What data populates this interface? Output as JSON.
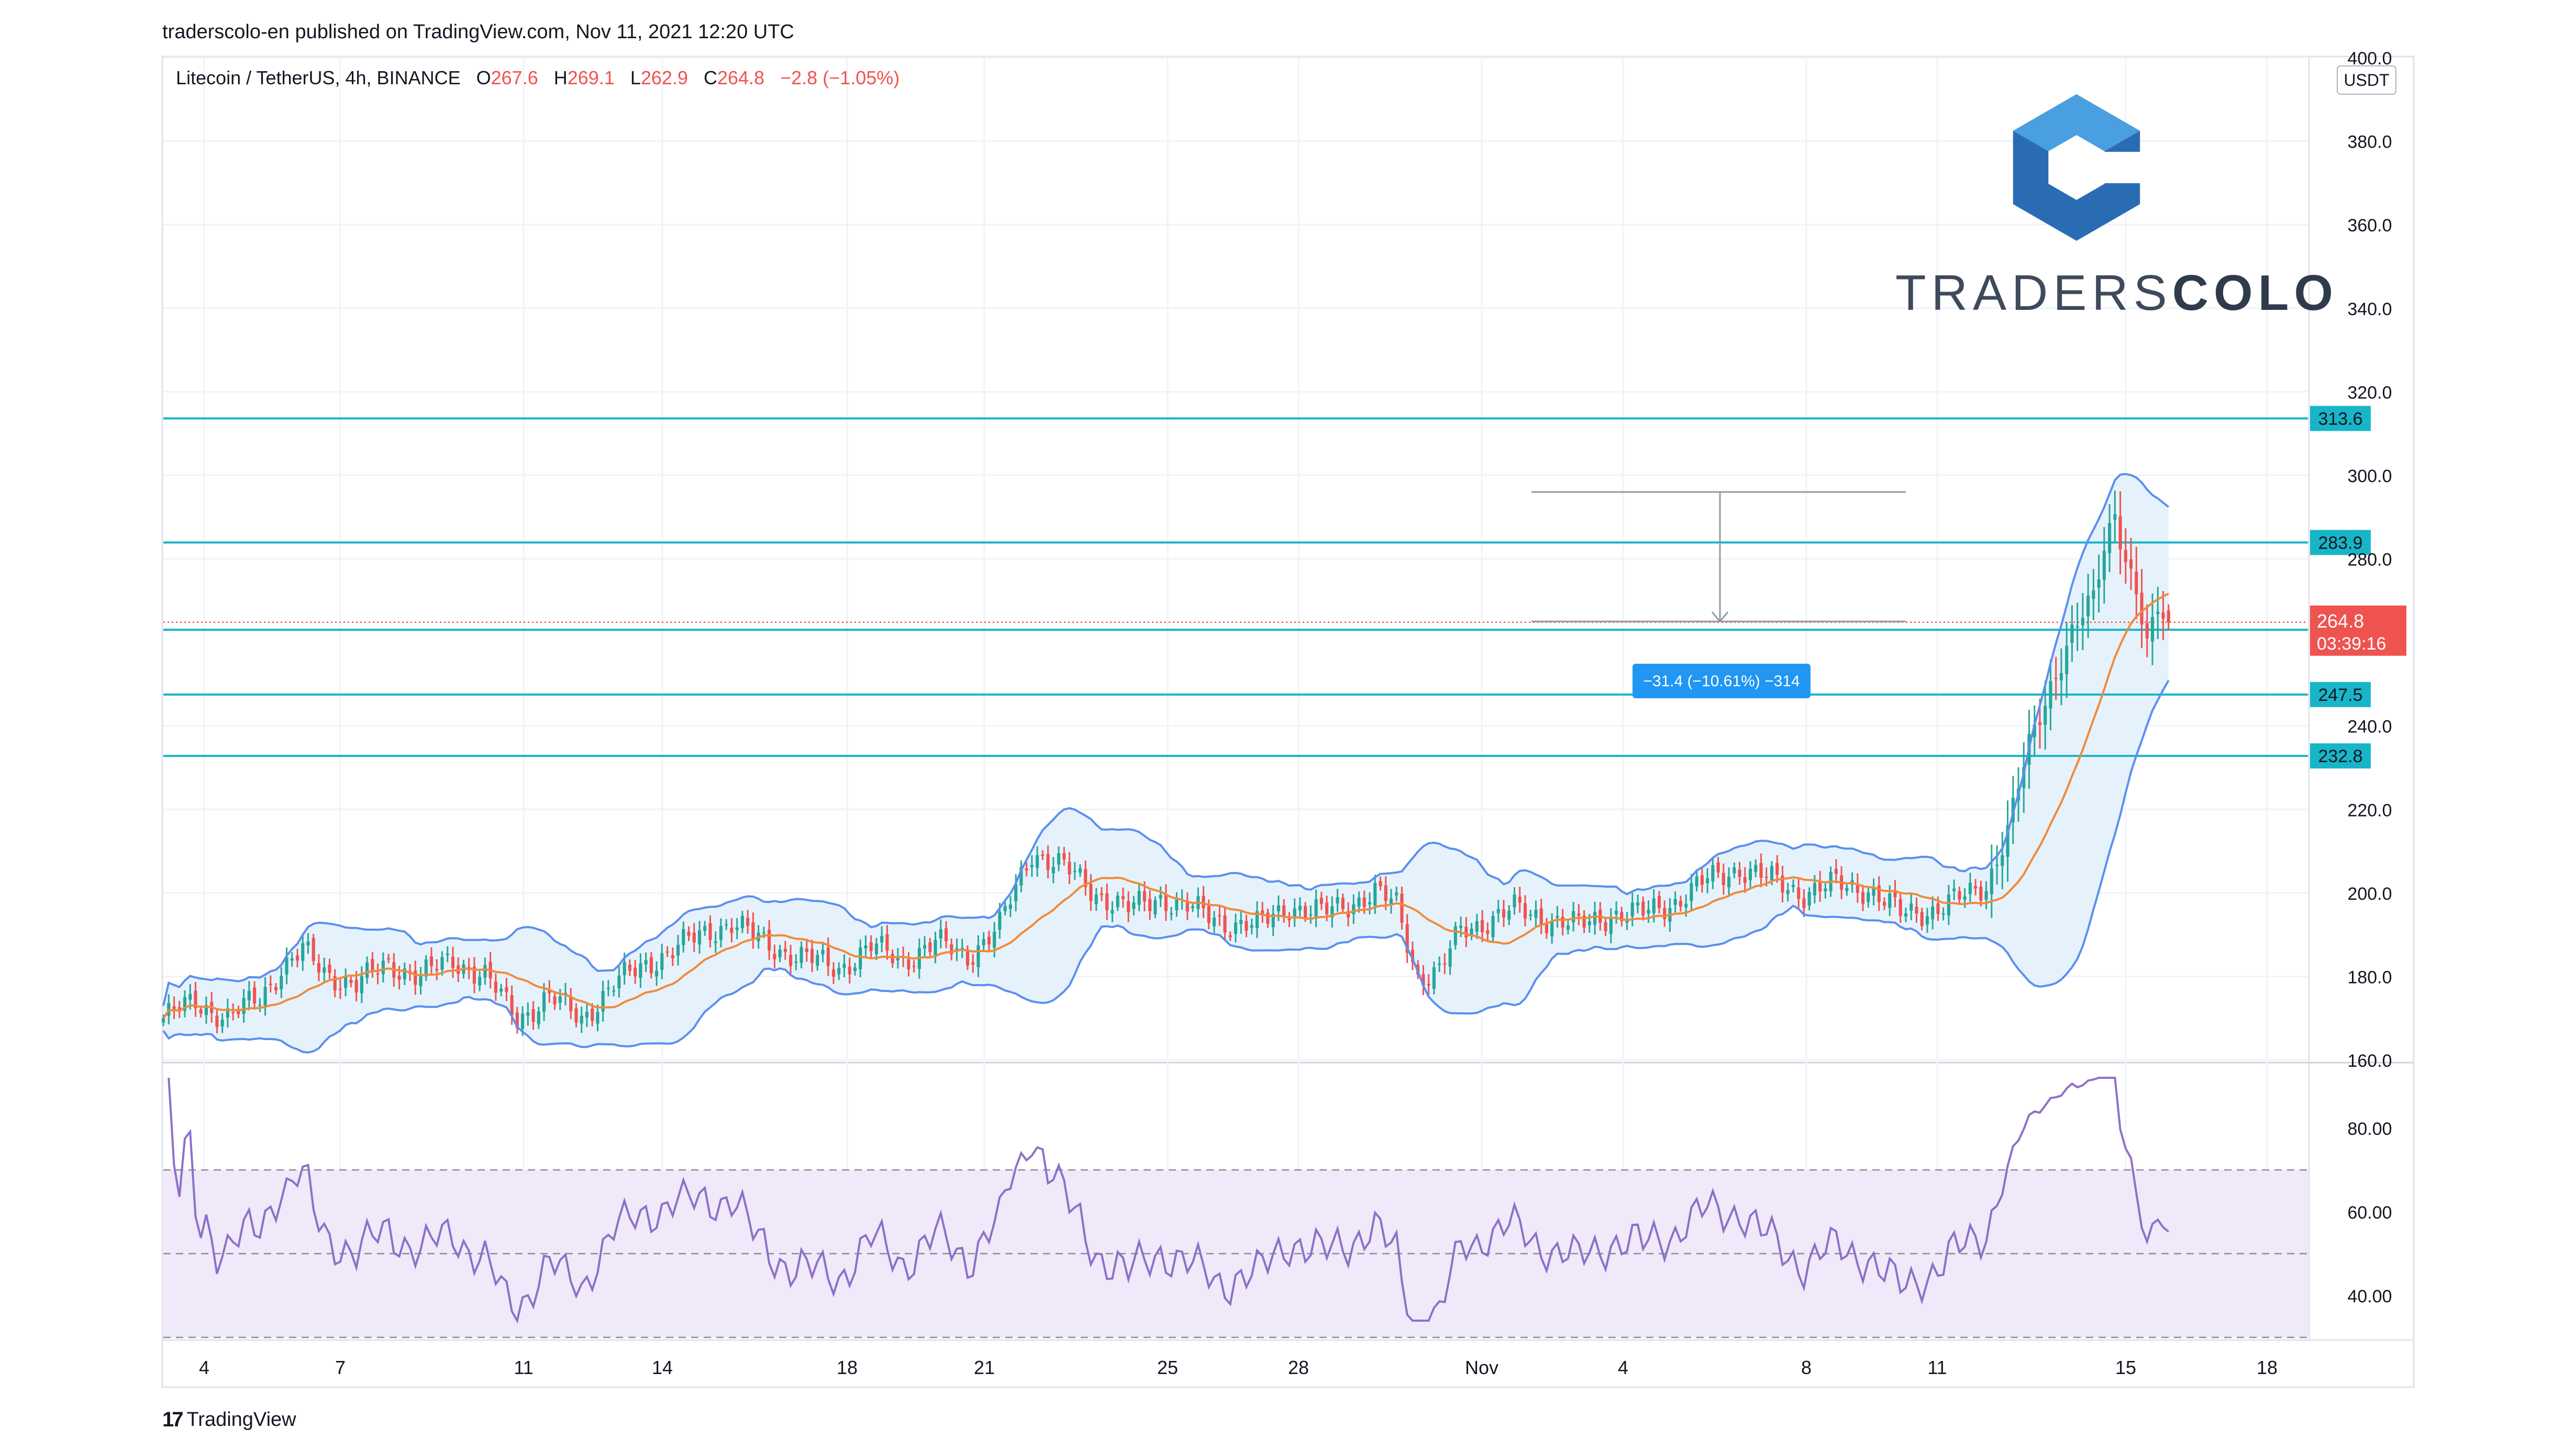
{
  "publisher": "traderscolo-en published on TradingView.com, Nov 11, 2021 12:20 UTC",
  "legend": {
    "symbol": "Litecoin / TetherUS, 4h, BINANCE",
    "o_label": "O",
    "o": "267.6",
    "h_label": "H",
    "h": "269.1",
    "l_label": "L",
    "l": "262.9",
    "c_label": "C",
    "c": "264.8",
    "change": "−2.8 (−1.05%)"
  },
  "currency": "USDT",
  "brand": {
    "left": "TRADERS",
    "right": "COLO"
  },
  "footer": "TradingView",
  "colors": {
    "bull": "#26a69a",
    "bear": "#ef5350",
    "bb": "#5b8ff0",
    "bb_fill": "#e6f2fb",
    "basis": "#f08a3a",
    "level": "#18b5c8",
    "rsi": "#8e6fc8",
    "rsi_band": "#efe9f9",
    "measure": "#2196f3",
    "logo_dark": "#2a6cb3",
    "logo_light": "#4a9fe0"
  },
  "chart_data": {
    "type": "candlestick",
    "symbol": "Litecoin / TetherUS",
    "interval": "4h",
    "exchange": "BINANCE",
    "ylim": [
      160,
      400
    ],
    "y_ticks": [
      "400.0",
      "380.0",
      "360.0",
      "340.0",
      "320.0",
      "300.0",
      "280.0",
      "240.0",
      "220.0",
      "200.0",
      "180.0",
      "160.0"
    ],
    "x_ticks": [
      "4",
      "7",
      "11",
      "14",
      "18",
      "21",
      "25",
      "28",
      "Nov",
      "4",
      "8",
      "11",
      "15",
      "18"
    ],
    "close_anchors": [
      [
        0,
        170
      ],
      [
        6,
        174
      ],
      [
        12,
        170
      ],
      [
        18,
        175
      ],
      [
        22,
        182
      ],
      [
        26,
        186
      ],
      [
        30,
        181
      ],
      [
        36,
        178
      ],
      [
        42,
        183
      ],
      [
        48,
        180
      ],
      [
        54,
        184
      ],
      [
        60,
        180
      ],
      [
        66,
        170
      ],
      [
        72,
        175
      ],
      [
        78,
        170
      ],
      [
        84,
        178
      ],
      [
        90,
        183
      ],
      [
        96,
        187
      ],
      [
        102,
        191
      ],
      [
        106,
        193
      ],
      [
        112,
        188
      ],
      [
        118,
        185
      ],
      [
        126,
        182
      ],
      [
        132,
        187
      ],
      [
        138,
        184
      ],
      [
        144,
        188
      ],
      [
        150,
        185
      ],
      [
        156,
        192
      ],
      [
        162,
        210
      ],
      [
        168,
        206
      ],
      [
        174,
        200
      ],
      [
        180,
        196
      ],
      [
        186,
        199
      ],
      [
        192,
        196
      ],
      [
        198,
        193
      ],
      [
        204,
        192
      ],
      [
        210,
        197
      ],
      [
        216,
        195
      ],
      [
        222,
        198
      ],
      [
        226,
        200
      ],
      [
        230,
        197
      ],
      [
        234,
        180
      ],
      [
        238,
        181
      ],
      [
        242,
        191
      ],
      [
        246,
        193
      ],
      [
        252,
        196
      ],
      [
        258,
        194
      ],
      [
        264,
        192
      ],
      [
        270,
        195
      ],
      [
        276,
        195
      ],
      [
        282,
        198
      ],
      [
        288,
        203
      ],
      [
        294,
        206
      ],
      [
        300,
        203
      ],
      [
        306,
        200
      ],
      [
        312,
        202
      ],
      [
        318,
        201
      ],
      [
        324,
        195
      ],
      [
        330,
        196
      ],
      [
        336,
        199
      ],
      [
        340,
        202
      ],
      [
        344,
        215
      ],
      [
        348,
        235
      ],
      [
        352,
        250
      ],
      [
        356,
        262
      ],
      [
        360,
        270
      ],
      [
        362,
        283
      ],
      [
        364,
        292
      ],
      [
        366,
        280
      ],
      [
        368,
        272
      ],
      [
        370,
        258
      ],
      [
        372,
        268
      ],
      [
        374,
        264.8
      ]
    ],
    "total_bars": 375,
    "x_domain": [
      0,
      400
    ],
    "bollinger": {
      "basis": "20",
      "bands": "2"
    },
    "last_price": "264.8",
    "countdown": "03:39:16",
    "levels": [
      313.6,
      283.9,
      263.0,
      247.5,
      232.8
    ],
    "level_labels": [
      "313.6",
      "283.9",
      "263.0",
      "247.5",
      "232.8"
    ],
    "measure": {
      "from": 296,
      "to": 265,
      "label": "−31.4 (−10.61%) −314"
    },
    "rsi": {
      "ylim": [
        30,
        95
      ],
      "y_ticks": [
        "80.00",
        "60.00",
        "40.00"
      ],
      "upper": 70,
      "middle": 50,
      "lower": 30
    }
  }
}
